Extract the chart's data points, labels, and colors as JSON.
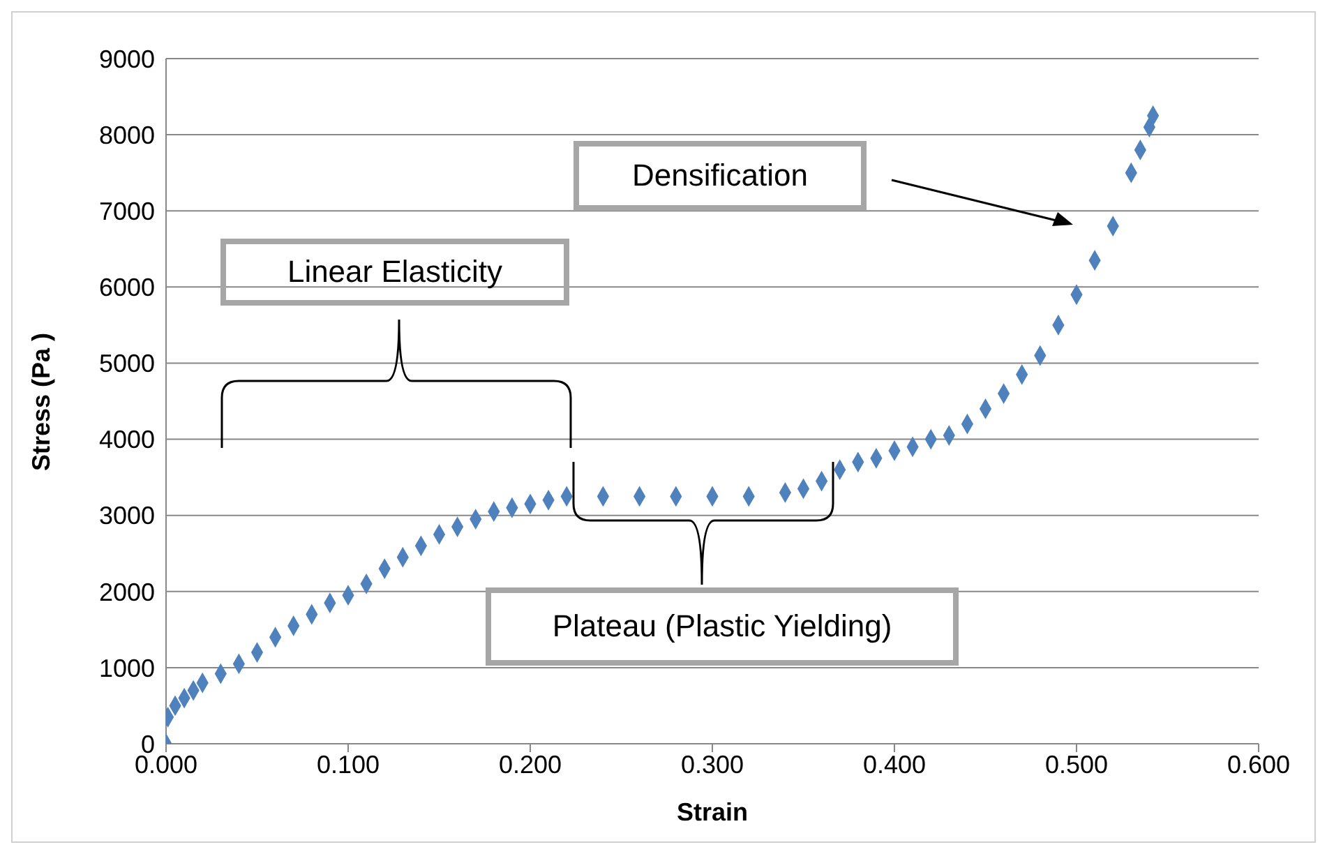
{
  "chart_data": {
    "type": "scatter",
    "xlabel": "Strain",
    "ylabel": "Stress (Pa )",
    "x": [
      0,
      0.001,
      0.005,
      0.01,
      0.015,
      0.02,
      0.03,
      0.04,
      0.05,
      0.06,
      0.07,
      0.08,
      0.09,
      0.1,
      0.11,
      0.12,
      0.13,
      0.14,
      0.15,
      0.16,
      0.17,
      0.18,
      0.19,
      0.2,
      0.21,
      0.22,
      0.24,
      0.26,
      0.28,
      0.3,
      0.32,
      0.34,
      0.35,
      0.36,
      0.37,
      0.38,
      0.39,
      0.4,
      0.41,
      0.42,
      0.43,
      0.44,
      0.45,
      0.46,
      0.47,
      0.48,
      0.49,
      0.5,
      0.51,
      0.52,
      0.53,
      0.535,
      0.54,
      0.542
    ],
    "series": [
      {
        "color": "#4f81bd",
        "values": [
          0,
          350,
          500,
          600,
          700,
          800,
          920,
          1050,
          1200,
          1400,
          1550,
          1700,
          1850,
          1950,
          2100,
          2300,
          2450,
          2600,
          2750,
          2850,
          2950,
          3050,
          3100,
          3150,
          3200,
          3250,
          3250,
          3250,
          3250,
          3250,
          3250,
          3300,
          3350,
          3450,
          3600,
          3700,
          3750,
          3850,
          3900,
          4000,
          4050,
          4200,
          4400,
          4600,
          4850,
          5100,
          5500,
          5900,
          6350,
          6800,
          7500,
          7800,
          8100,
          8250
        ]
      }
    ],
    "xlim": [
      0,
      0.6
    ],
    "xticks": [
      {
        "value": 0,
        "label": "0.000"
      },
      {
        "value": 0.1,
        "label": "0.100"
      },
      {
        "value": 0.2,
        "label": "0.200"
      },
      {
        "value": 0.3,
        "label": "0.300"
      },
      {
        "value": 0.4,
        "label": "0.400"
      },
      {
        "value": 0.5,
        "label": "0.500"
      },
      {
        "value": 0.6,
        "label": "0.600"
      }
    ],
    "ylim": [
      0,
      9000
    ],
    "yticks": [
      0,
      1000,
      2000,
      3000,
      4000,
      5000,
      6000,
      7000,
      8000,
      9000
    ],
    "grid": "y",
    "marker": "diamond",
    "annotations": [
      "Linear Elasticity",
      "Densification",
      "Plateau (Plastic Yielding)"
    ]
  }
}
